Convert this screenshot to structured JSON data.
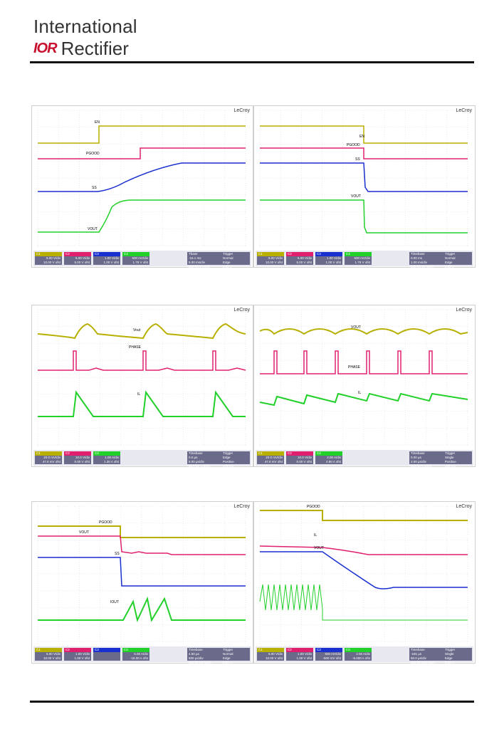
{
  "header": {
    "company_line1": "International",
    "logo_mark": "IOR",
    "company_line2": "Rectifier"
  },
  "colors": {
    "ch1": "#b8b000",
    "ch2": "#e0206e",
    "ch3": "#1a2fd0",
    "ch4": "#22d02a",
    "grid": "#d8d8d8",
    "infobar": "#6a6a8a"
  },
  "scopes": [
    {
      "brand": "LeCroy",
      "labels": [
        "EN",
        "PGOOD",
        "SS",
        "VOUT"
      ],
      "channels": [
        {
          "name": "C1",
          "scale": "5.00 V/div",
          "offset": "10.00 V ofst"
        },
        {
          "name": "C2",
          "scale": "5.00 V/div",
          "offset": "5.00 V ofst"
        },
        {
          "name": "C3",
          "scale": "1.00 V/div",
          "offset": "1.00 V ofst"
        },
        {
          "name": "C4",
          "scale": "500 mV/div",
          "offset": "1.78 V ofst"
        }
      ],
      "timebase": [
        "Tbase",
        "-16.1 ms",
        "5.00 ms/div",
        "100 kS  2 MS/s"
      ],
      "trigger": [
        "Trigger",
        "Normal",
        "Edge",
        "2.35 V",
        "Positive"
      ]
    },
    {
      "brand": "LeCroy",
      "labels": [
        "EN",
        "PGOOD",
        "SS",
        "VOUT"
      ],
      "channels": [
        {
          "name": "C1",
          "scale": "5.00 V/div",
          "offset": "10.00 V ofst"
        },
        {
          "name": "C2",
          "scale": "5.00 V/div",
          "offset": "5.00 V ofst"
        },
        {
          "name": "C3",
          "scale": "1.00 V/div",
          "offset": "1.00 V ofst"
        },
        {
          "name": "C4",
          "scale": "500 mV/div",
          "offset": "1.78 V ofst"
        }
      ],
      "timebase": [
        "Timebase",
        "0.00 ms",
        "1.00 ms/div",
        "100 kS  10 MS/s"
      ],
      "trigger": [
        "Trigger",
        "Normal",
        "Edge",
        "2.30 V",
        "Positive"
      ]
    },
    {
      "brand": "LeCroy",
      "labels": [
        "Vout",
        "PHASE",
        "IL"
      ],
      "channels": [
        {
          "name": "C1",
          "scale": "20.0 mV/div",
          "offset": "47.0 mV ofst"
        },
        {
          "name": "C2",
          "scale": "10.0 V/div",
          "offset": "0.00 V ofst"
        },
        {
          "name": "C4",
          "scale": "1.00 A/div",
          "offset": "1.30 A ofst"
        }
      ],
      "timebase": [
        "Timebase",
        "0.0 µs",
        "5.00 µs/div",
        "50.0 kS  1 GS/s"
      ],
      "trigger": [
        "Trigger",
        "Edge",
        "Positive",
        "470 mV"
      ]
    },
    {
      "brand": "LeCroy",
      "labels": [
        "VOUT",
        "PHASE",
        "IL"
      ],
      "channels": [
        {
          "name": "C1",
          "scale": "20.0 mV/div",
          "offset": "47.0 mV ofst"
        },
        {
          "name": "C2",
          "scale": "10.0 V/div",
          "offset": "0.00 V ofst"
        },
        {
          "name": "C4",
          "scale": "2.00 A/div",
          "offset": "4.80 A ofst"
        }
      ],
      "timebase": [
        "Timebase",
        "0.00 µs",
        "2.00 µs/div",
        "100 kS  5 GS/s"
      ],
      "trigger": [
        "Trigger",
        "Single",
        "Positive",
        "400 mV"
      ]
    },
    {
      "brand": "LeCroy",
      "labels": [
        "PGOOD",
        "VOUT",
        "SS",
        "IOUT"
      ],
      "channels": [
        {
          "name": "C1",
          "scale": "5.00 V/div",
          "offset": "10.00 V ofst"
        },
        {
          "name": "C2",
          "scale": "1.00 V/div",
          "offset": "1.00 V ofst"
        },
        {
          "name": "C3",
          "scale": "",
          "offset": ""
        },
        {
          "name": "C4",
          "scale": "5.00 A/div",
          "offset": "-15.00 A ofst"
        }
      ],
      "timebase": [
        "Timebase",
        "4.60 µs",
        "500 µs/div",
        "100 kS  20 MS/s"
      ],
      "trigger": [
        "Trigger",
        "Normal",
        "Edge",
        "2.35 A",
        "Positive"
      ]
    },
    {
      "brand": "LeCroy",
      "labels": [
        "PGOOD",
        "IL",
        "VOUT"
      ],
      "channels": [
        {
          "name": "C1",
          "scale": "5.00 V/div",
          "offset": "10.00 V ofst"
        },
        {
          "name": "C2",
          "scale": "1.00 V/div",
          "offset": "1.00 V ofst"
        },
        {
          "name": "C3",
          "scale": "500 mV/div",
          "offset": "-500 mV ofst"
        },
        {
          "name": "C4",
          "scale": "2.00 A/div",
          "offset": "-6.000 A ofst"
        }
      ],
      "timebase": [
        "Timebase",
        "-181 µs",
        "50.0 µs/div",
        "100 kS  200 MS/s"
      ],
      "trigger": [
        "Trigger",
        "Single",
        "Edge",
        "5.40 V",
        "Negative"
      ]
    }
  ]
}
